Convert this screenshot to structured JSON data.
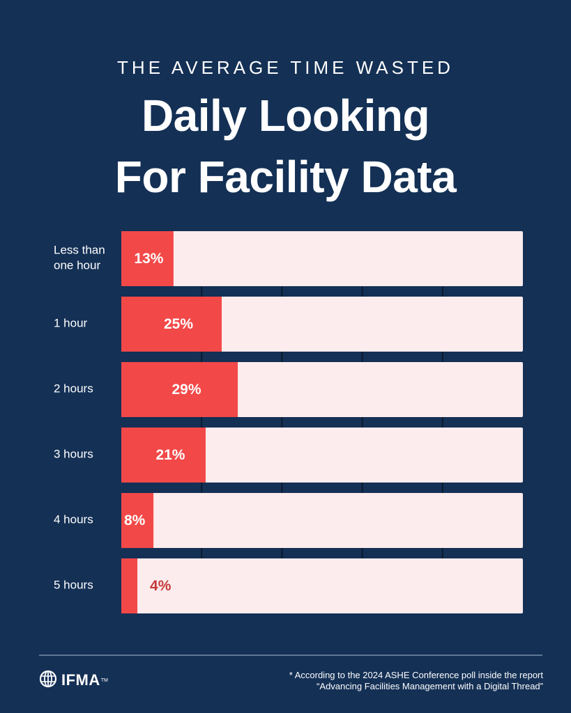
{
  "header": {
    "kicker": "THE AVERAGE TIME WASTED",
    "title_line1": "Daily Looking",
    "title_line2": "For Facility Data"
  },
  "colors": {
    "background": "#143055",
    "bar_fill": "#f24848",
    "bar_track": "#fdeced",
    "label_inside": "#ffffff",
    "label_outside": "#c23a3a"
  },
  "chart_data": {
    "type": "bar",
    "orientation": "horizontal",
    "unit": "%",
    "categories": [
      [
        "Less than",
        "one hour"
      ],
      [
        "1 hour"
      ],
      [
        "2 hours"
      ],
      [
        "3 hours"
      ],
      [
        "4 hours"
      ],
      [
        "5 hours"
      ]
    ],
    "values": [
      13,
      25,
      29,
      21,
      8,
      4
    ],
    "value_labels": [
      "13%",
      "25%",
      "29%",
      "21%",
      "8%",
      "4%"
    ],
    "xlim": [
      0,
      100
    ],
    "grid": true
  },
  "footer": {
    "logo_icon": "globe-icon",
    "logo_text": "IFMA",
    "logo_tm": "TM",
    "footnote_line1": "* According to the 2024 ASHE Conference poll inside the report",
    "footnote_line2": "“Advancing Facilities Management with a Digital Thread”"
  }
}
